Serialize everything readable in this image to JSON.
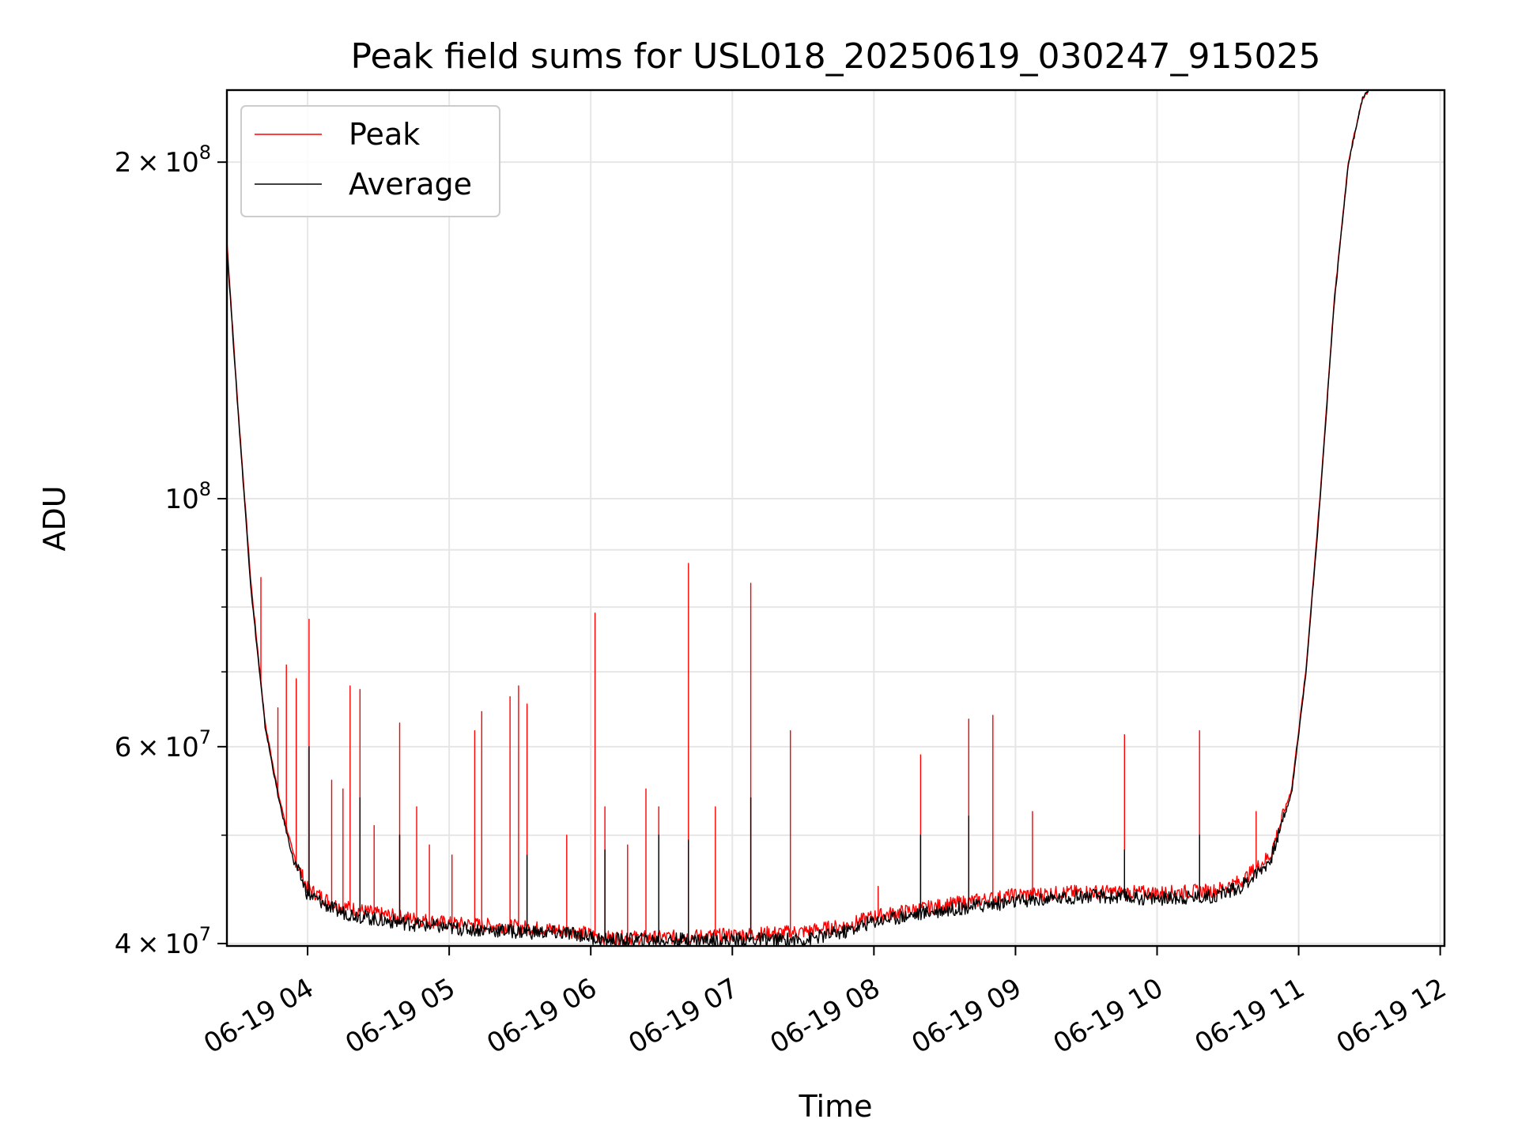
{
  "chart_data": {
    "type": "line",
    "title": "Peak field sums for USL018_20250619_030247_915025",
    "xlabel": "Time",
    "ylabel": "ADU",
    "x_unit": "hours on 2025-06-19",
    "xlim": [
      3.43,
      12.03
    ],
    "ylim": [
      39800000,
      232000000
    ],
    "yscale": "log",
    "grid": true,
    "legend_position": "upper left",
    "x_ticks": [
      {
        "value": 4,
        "label": "06-19 04"
      },
      {
        "value": 5,
        "label": "06-19 05"
      },
      {
        "value": 6,
        "label": "06-19 06"
      },
      {
        "value": 7,
        "label": "06-19 07"
      },
      {
        "value": 8,
        "label": "06-19 08"
      },
      {
        "value": 9,
        "label": "06-19 09"
      },
      {
        "value": 10,
        "label": "06-19 10"
      },
      {
        "value": 11,
        "label": "06-19 11"
      },
      {
        "value": 12,
        "label": "06-19 12"
      }
    ],
    "y_ticks": [
      {
        "value": 40000000,
        "mantissa": "4",
        "exponent": "7"
      },
      {
        "value": 60000000,
        "mantissa": "6",
        "exponent": "7"
      },
      {
        "value": 100000000,
        "mantissa": "",
        "exponent": "8"
      },
      {
        "value": 200000000,
        "mantissa": "2",
        "exponent": "8"
      }
    ],
    "y_minor_ticks": [
      50000000,
      70000000,
      80000000,
      90000000
    ],
    "series": [
      {
        "name": "Peak",
        "color": "#ff0000",
        "baseline": [
          [
            3.43,
            170000000
          ],
          [
            3.5,
            125000000
          ],
          [
            3.6,
            84000000
          ],
          [
            3.7,
            63000000
          ],
          [
            3.8,
            54000000
          ],
          [
            3.9,
            48000000
          ],
          [
            4.0,
            44800000
          ],
          [
            4.2,
            43300000
          ],
          [
            4.5,
            42500000
          ],
          [
            5.0,
            41700000
          ],
          [
            5.5,
            41400000
          ],
          [
            5.9,
            41000000
          ],
          [
            6.1,
            40500000
          ],
          [
            6.5,
            40500000
          ],
          [
            7.0,
            40700000
          ],
          [
            7.5,
            41000000
          ],
          [
            7.8,
            41500000
          ],
          [
            8.0,
            42300000
          ],
          [
            8.5,
            43300000
          ],
          [
            9.0,
            44200000
          ],
          [
            9.5,
            44500000
          ],
          [
            10.0,
            44400000
          ],
          [
            10.4,
            44600000
          ],
          [
            10.6,
            45500000
          ],
          [
            10.8,
            48000000
          ],
          [
            10.95,
            55000000
          ],
          [
            11.05,
            70000000
          ],
          [
            11.15,
            100000000
          ],
          [
            11.25,
            150000000
          ],
          [
            11.35,
            200000000
          ],
          [
            11.45,
            228000000
          ],
          [
            11.5,
            232000000
          ]
        ],
        "spikes": [
          [
            3.67,
            85000000
          ],
          [
            3.79,
            65000000
          ],
          [
            3.85,
            71000000
          ],
          [
            3.92,
            69000000
          ],
          [
            4.01,
            78000000
          ],
          [
            4.17,
            56000000
          ],
          [
            4.25,
            55000000
          ],
          [
            4.3,
            68000000
          ],
          [
            4.37,
            67500000
          ],
          [
            4.47,
            51000000
          ],
          [
            4.65,
            63000000
          ],
          [
            4.77,
            53000000
          ],
          [
            4.86,
            49000000
          ],
          [
            5.02,
            48000000
          ],
          [
            5.18,
            62000000
          ],
          [
            5.23,
            64500000
          ],
          [
            5.43,
            66500000
          ],
          [
            5.49,
            68000000
          ],
          [
            5.55,
            65500000
          ],
          [
            5.83,
            50000000
          ],
          [
            6.03,
            79000000
          ],
          [
            6.1,
            53000000
          ],
          [
            6.26,
            49000000
          ],
          [
            6.39,
            55000000
          ],
          [
            6.48,
            53000000
          ],
          [
            6.69,
            87500000
          ],
          [
            6.88,
            53000000
          ],
          [
            7.13,
            84000000
          ],
          [
            7.41,
            62000000
          ],
          [
            8.03,
            45000000
          ],
          [
            8.33,
            59000000
          ],
          [
            8.67,
            63500000
          ],
          [
            8.84,
            64000000
          ],
          [
            9.12,
            52500000
          ],
          [
            9.77,
            61500000
          ],
          [
            10.3,
            62000000
          ],
          [
            10.7,
            52500000
          ]
        ]
      },
      {
        "name": "Average",
        "color": "#000000",
        "baseline": [
          [
            3.43,
            168000000
          ],
          [
            3.5,
            124000000
          ],
          [
            3.6,
            83000000
          ],
          [
            3.7,
            62500000
          ],
          [
            3.8,
            53500000
          ],
          [
            3.9,
            47500000
          ],
          [
            4.0,
            44300000
          ],
          [
            4.2,
            42800000
          ],
          [
            4.5,
            42000000
          ],
          [
            5.0,
            41300000
          ],
          [
            5.5,
            41000000
          ],
          [
            5.9,
            40800000
          ],
          [
            6.1,
            40300000
          ],
          [
            6.5,
            40300000
          ],
          [
            7.0,
            40300000
          ],
          [
            7.5,
            40300000
          ],
          [
            7.8,
            41000000
          ],
          [
            8.0,
            41900000
          ],
          [
            8.5,
            42900000
          ],
          [
            9.0,
            43600000
          ],
          [
            9.5,
            44100000
          ],
          [
            10.0,
            43900000
          ],
          [
            10.4,
            44100000
          ],
          [
            10.6,
            45000000
          ],
          [
            10.8,
            47500000
          ],
          [
            10.95,
            54500000
          ],
          [
            11.05,
            69500000
          ],
          [
            11.15,
            99000000
          ],
          [
            11.25,
            149000000
          ],
          [
            11.35,
            199000000
          ],
          [
            11.45,
            228000000
          ],
          [
            11.5,
            232000000
          ]
        ],
        "spikes": [
          [
            4.01,
            60000000
          ],
          [
            4.37,
            54000000
          ],
          [
            4.65,
            50000000
          ],
          [
            5.55,
            48000000
          ],
          [
            6.1,
            48500000
          ],
          [
            6.48,
            50000000
          ],
          [
            6.69,
            49500000
          ],
          [
            7.13,
            54000000
          ],
          [
            8.33,
            50000000
          ],
          [
            8.67,
            52000000
          ],
          [
            9.77,
            48500000
          ],
          [
            10.3,
            50000000
          ]
        ]
      }
    ]
  }
}
